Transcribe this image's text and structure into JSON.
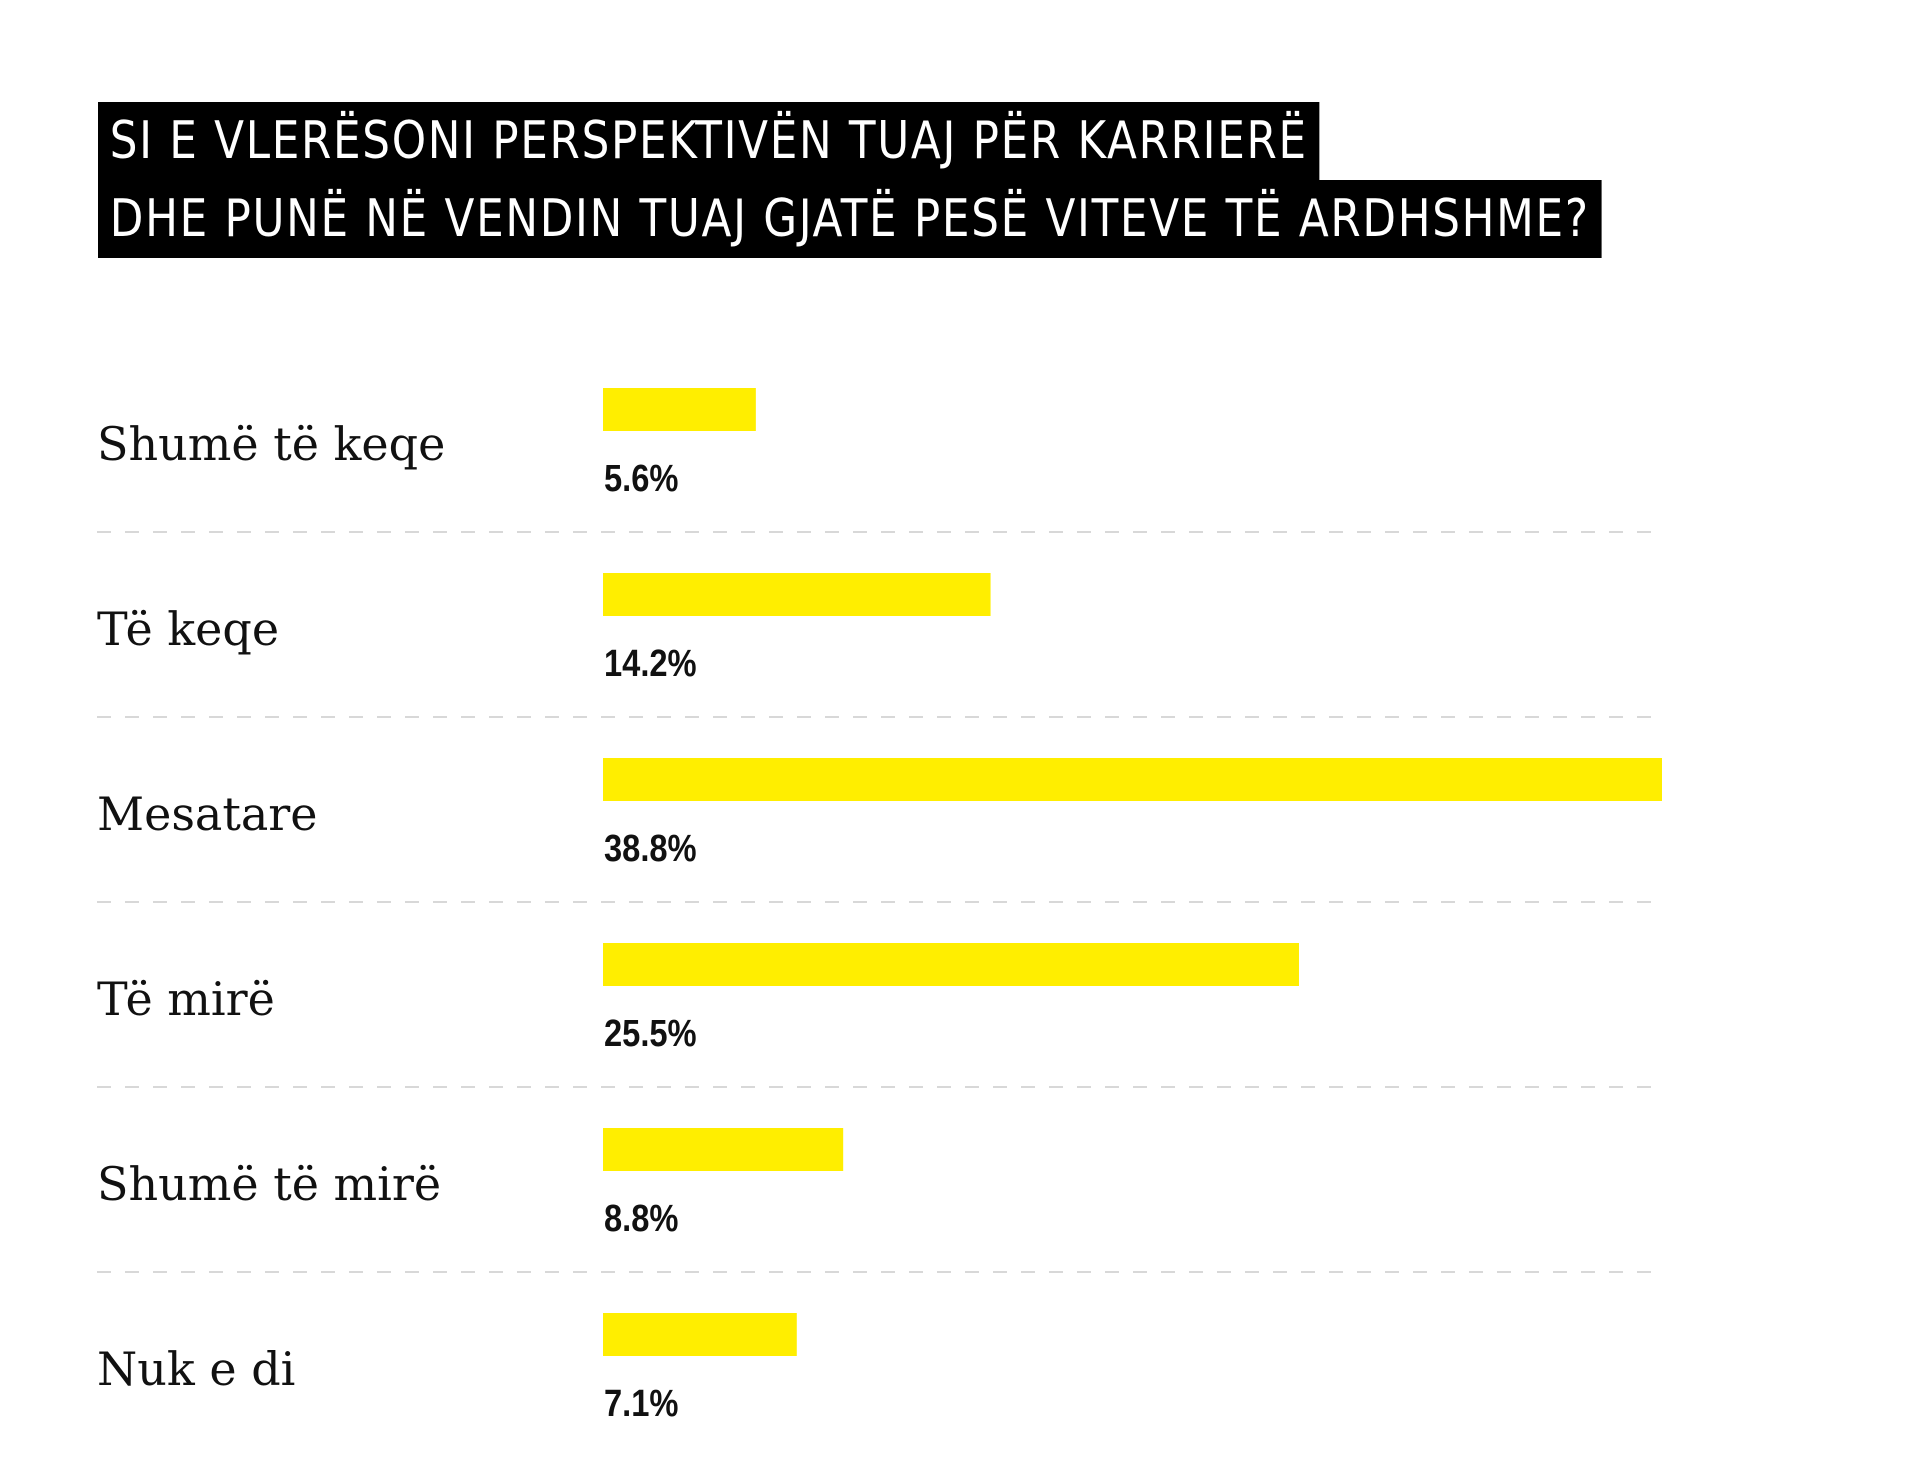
{
  "title_lines": [
    "SI E VLERËSONI PERSPEKTIVËN TUAJ PËR KARRIERË",
    "DHE PUNË NË VENDIN TUAJ GJATË PESË VITEVE TË ARDHSHME?"
  ],
  "colors": {
    "bar": "#ffee00",
    "title_background": "#000000",
    "title_text": "#ffffff",
    "divider": "#d8d8d8"
  },
  "chart_data": {
    "type": "bar",
    "orientation": "horizontal",
    "title": "SI E VLERËSONI PERSPEKTIVËN TUAJ PËR KARRIERË DHE PUNË NË VENDIN TUAJ GJATË PESË VITEVE TË ARDHSHME?",
    "categories": [
      "Shumë të keqe",
      "Të keqe",
      "Mesatare",
      "Të mirë",
      "Shumë të mirë",
      "Nuk e di"
    ],
    "values": [
      5.6,
      14.2,
      38.8,
      25.5,
      8.8,
      7.1
    ],
    "value_labels": [
      "5.6%",
      "14.2%",
      "38.8%",
      "25.5%",
      "8.8%",
      "7.1%"
    ],
    "unit": "%",
    "xlim": [
      0,
      38.8
    ],
    "grid": false,
    "legend": "none"
  }
}
